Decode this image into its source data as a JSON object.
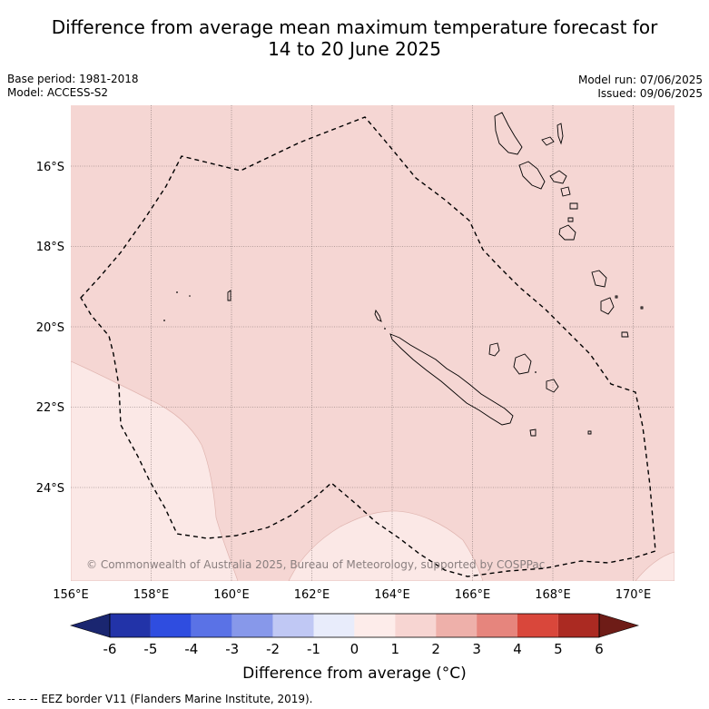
{
  "title_line1": "Difference from average mean maximum temperature forecast for",
  "title_line2": "14 to 20 June 2025",
  "base_period": "Base period: 1981-2018",
  "model": "Model: ACCESS-S2",
  "model_run": "Model run: 07/06/2025",
  "issued": "Issued: 09/06/2025",
  "map": {
    "lon_labels": [
      "156°E",
      "158°E",
      "160°E",
      "162°E",
      "164°E",
      "166°E",
      "168°E",
      "170°E"
    ],
    "lat_labels": [
      "16°S",
      "18°S",
      "20°S",
      "22°S",
      "24°S"
    ],
    "copyright": "© Commonwealth of Australia 2025, Bureau of Meteorology, supported by COSPPac",
    "region_fill_colors": {
      "anomaly_0_to_1": "#fbe8e6",
      "anomaly_1_to_2": "#f5d6d3"
    },
    "coastline_color": "#000000",
    "eez_line_style": "dashed"
  },
  "colorbar": {
    "ticks": [
      "-6",
      "-5",
      "-4",
      "-3",
      "-2",
      "-1",
      "0",
      "1",
      "2",
      "3",
      "4",
      "5",
      "6"
    ],
    "colors": [
      "#2233a8",
      "#2f4de0",
      "#5a72e6",
      "#8798ea",
      "#c0c8f4",
      "#e8ecfb",
      "#fdecea",
      "#f7d5d2",
      "#eeb0aa",
      "#e6857d",
      "#d9473b",
      "#ab2a22"
    ],
    "low_extend_color": "#1a2670",
    "high_extend_color": "#6e1c17",
    "label": "Difference from average (°C)"
  },
  "footer": "--  --  -- EEZ border V11 (Flanders Marine Institute, 2019)."
}
